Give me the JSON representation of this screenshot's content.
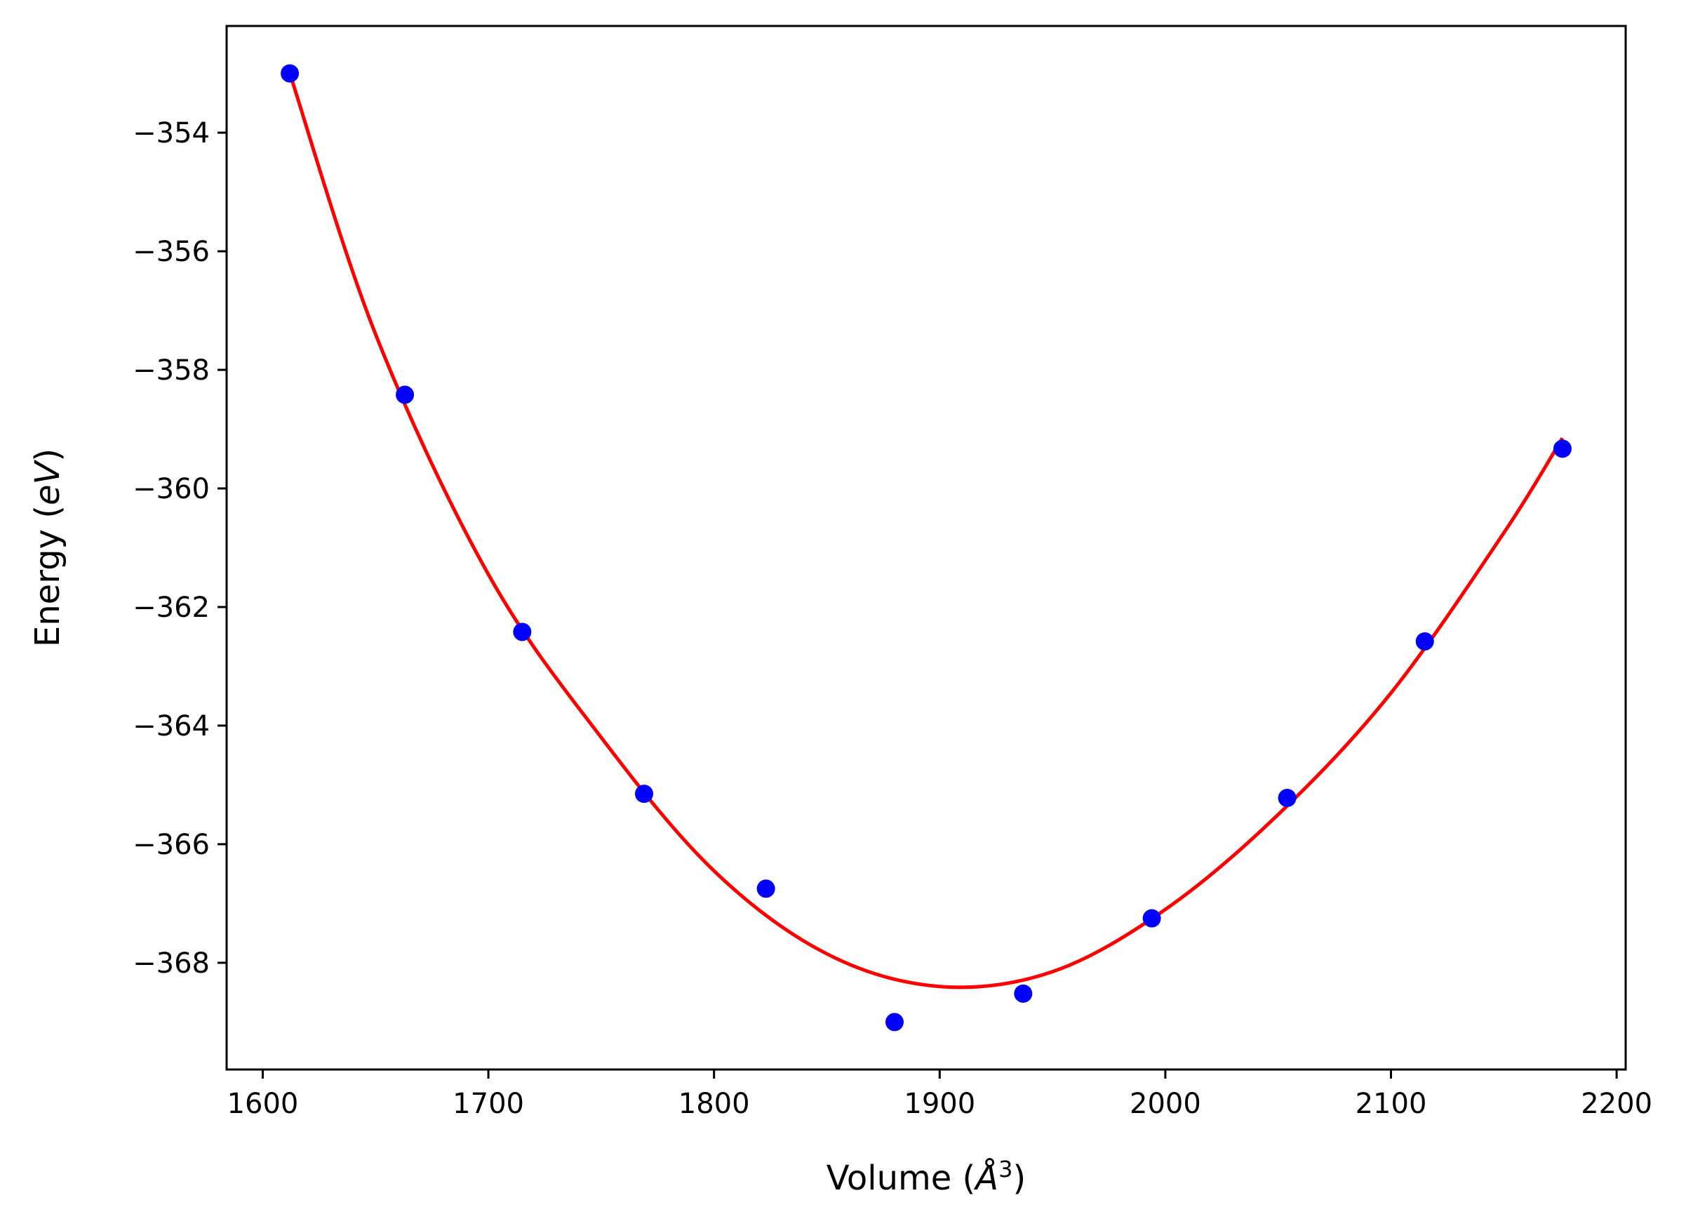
{
  "chart_data": {
    "type": "scatter",
    "title": "",
    "xlabel": {
      "prefix": "Volume (",
      "symbol": "Å",
      "power": "3",
      "suffix": ")"
    },
    "ylabel": {
      "prefix": "Energy (",
      "unit": "eV",
      "suffix": ")"
    },
    "xlim": [
      1584,
      2204
    ],
    "ylim": [
      -369.8,
      -352.2
    ],
    "xticks": [
      1600,
      1700,
      1800,
      1900,
      2000,
      2100,
      2200
    ],
    "xtick_labels": [
      "1600",
      "1700",
      "1800",
      "1900",
      "2000",
      "2100",
      "2200"
    ],
    "yticks": [
      -354,
      -356,
      -358,
      -360,
      -362,
      -364,
      -366,
      -368
    ],
    "ytick_labels": [
      "−354",
      "−356",
      "−358",
      "−360",
      "−362",
      "−364",
      "−366",
      "−368"
    ],
    "grid": false,
    "series": [
      {
        "kind": "points",
        "color": "#0000ff",
        "x": [
          1612,
          1663,
          1715,
          1769,
          1823,
          1880,
          1937,
          1994,
          2054,
          2115,
          2176
        ],
        "y": [
          -353.0,
          -358.42,
          -362.42,
          -365.15,
          -366.75,
          -369.0,
          -368.52,
          -367.25,
          -365.22,
          -362.58,
          -359.33
        ]
      },
      {
        "kind": "fit-line",
        "color": "#ff0000",
        "x": [
          1612,
          1650,
          1700,
          1750,
          1800,
          1850,
          1900,
          1950,
          2000,
          2050,
          2100,
          2150,
          2176
        ],
        "y": [
          -353.0,
          -357.4,
          -361.45,
          -364.2,
          -366.45,
          -367.85,
          -368.4,
          -368.15,
          -367.1,
          -365.5,
          -363.45,
          -360.75,
          -359.15
        ]
      }
    ]
  }
}
